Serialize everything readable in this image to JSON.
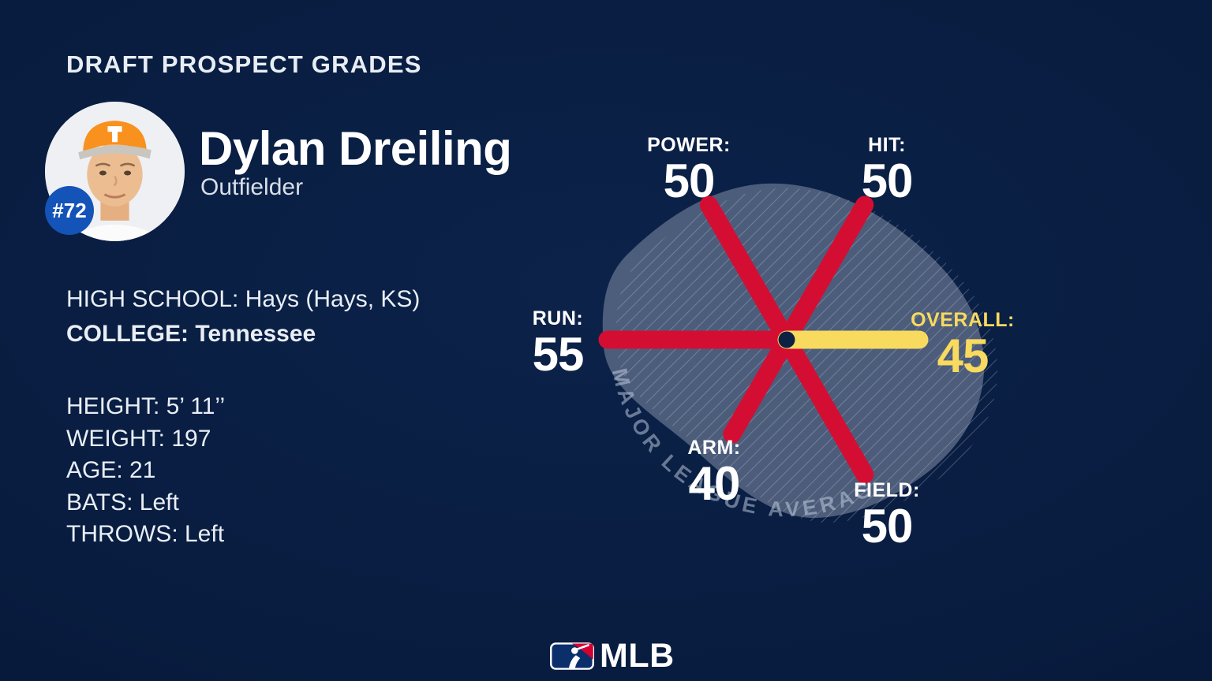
{
  "header": {
    "title": "DRAFT PROSPECT GRADES"
  },
  "player": {
    "number": "#72",
    "name": "Dylan Dreiling",
    "position": "Outfielder"
  },
  "bio": {
    "high_school": "HIGH SCHOOL: Hays (Hays, KS)",
    "college": "COLLEGE: Tennessee",
    "height": "HEIGHT: 5’ 11’’",
    "weight": "WEIGHT: 197",
    "age": "AGE: 21",
    "bats": "BATS: Left",
    "throws": "THROWS: Left"
  },
  "chart_data": {
    "type": "radar",
    "title": "DRAFT PROSPECT GRADES",
    "scale_note": "MAJOR LEAGUE AVERAGE",
    "grade_scale": "20-80 scouting scale, 50 = MLB average",
    "spokes": [
      {
        "name": "POWER",
        "label": "POWER:",
        "value": 50,
        "angle_deg": 120,
        "color": "#d40e32"
      },
      {
        "name": "HIT",
        "label": "HIT:",
        "value": 50,
        "angle_deg": 60,
        "color": "#d40e32"
      },
      {
        "name": "RUN",
        "label": "RUN:",
        "value": 55,
        "angle_deg": 180,
        "color": "#d40e32"
      },
      {
        "name": "OVERALL",
        "label": "OVERALL:",
        "value": 45,
        "angle_deg": 0,
        "color": "#f8da5e"
      },
      {
        "name": "ARM",
        "label": "ARM:",
        "value": 40,
        "angle_deg": 240,
        "color": "#d40e32"
      },
      {
        "name": "FIELD",
        "label": "FIELD:",
        "value": 50,
        "angle_deg": 300,
        "color": "#d40e32"
      }
    ],
    "colors": {
      "spoke": "#d40e32",
      "overall_spoke": "#f8da5e",
      "background": "#081c3f"
    },
    "legend_position": "around-spokes"
  },
  "footer": {
    "brand": "MLB"
  }
}
